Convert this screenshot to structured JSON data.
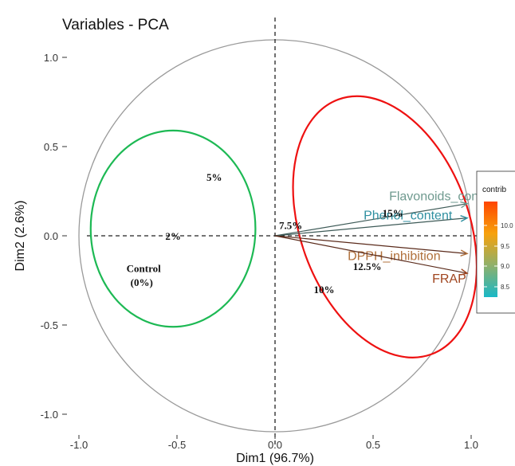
{
  "chart_data": {
    "type": "scatter",
    "title": "Variables - PCA",
    "xlabel": "Dim1 (96.7%)",
    "ylabel": "Dim2 (2.6%)",
    "xlim": [
      -1.0,
      1.0
    ],
    "ylim": [
      -1.0,
      1.0
    ],
    "x_ticks": [
      -1.0,
      -0.5,
      0.0,
      0.5,
      1.0
    ],
    "y_ticks": [
      -1.0,
      -0.5,
      0.0,
      0.5,
      1.0
    ],
    "x_tick_labels": [
      "-1.0",
      "-0.5",
      "0.0",
      "0.5",
      "1.0"
    ],
    "y_tick_labels": [
      "-1.0",
      "-0.5",
      "0.0",
      "0.5",
      "1.0"
    ],
    "grid": false,
    "reference_lines": "dashed lines at x=0 and y=0",
    "correlation_circle": {
      "center": [
        0,
        0
      ],
      "radius": 1.0
    },
    "vectors": [
      {
        "name": "Flavonoids_content",
        "x": 0.98,
        "y": 0.18,
        "color": "#6f9a8f"
      },
      {
        "name": "Phenol_content",
        "x": 0.98,
        "y": 0.1,
        "color": "#2e8fa0"
      },
      {
        "name": "DPPH_inhibition",
        "x": 0.98,
        "y": -0.1,
        "color": "#b0703b"
      },
      {
        "name": "FRAP",
        "x": 0.98,
        "y": -0.21,
        "color": "#a0451f"
      }
    ],
    "ellipses": [
      {
        "cx": -0.52,
        "cy": 0.04,
        "rx": 0.42,
        "ry": 0.55,
        "color": "#1db954"
      },
      {
        "cx": 0.56,
        "cy": 0.05,
        "rx": 0.43,
        "ry": 0.76,
        "angle": -20,
        "color": "#ee1111"
      }
    ],
    "annotations": [
      {
        "text": "5%",
        "x": -0.31,
        "y": 0.33
      },
      {
        "text": "2%",
        "x": -0.52,
        "y": 0.0
      },
      {
        "text": "Control",
        "x": -0.67,
        "y": -0.18
      },
      {
        "text": "(0%)",
        "x": -0.68,
        "y": -0.26
      },
      {
        "text": "7.5%",
        "x": 0.08,
        "y": 0.06
      },
      {
        "text": "15%",
        "x": 0.6,
        "y": 0.13
      },
      {
        "text": "12.5%",
        "x": 0.47,
        "y": -0.17
      },
      {
        "text": "10%",
        "x": 0.25,
        "y": -0.3
      }
    ],
    "legend": {
      "title": "contrib",
      "position": "right",
      "ticks": [
        "10.0",
        "9.5",
        "9.0",
        "8.5"
      ],
      "gradient": [
        "#ff4500",
        "#f7a10c",
        "#8fb06a",
        "#19b8c7"
      ]
    }
  }
}
